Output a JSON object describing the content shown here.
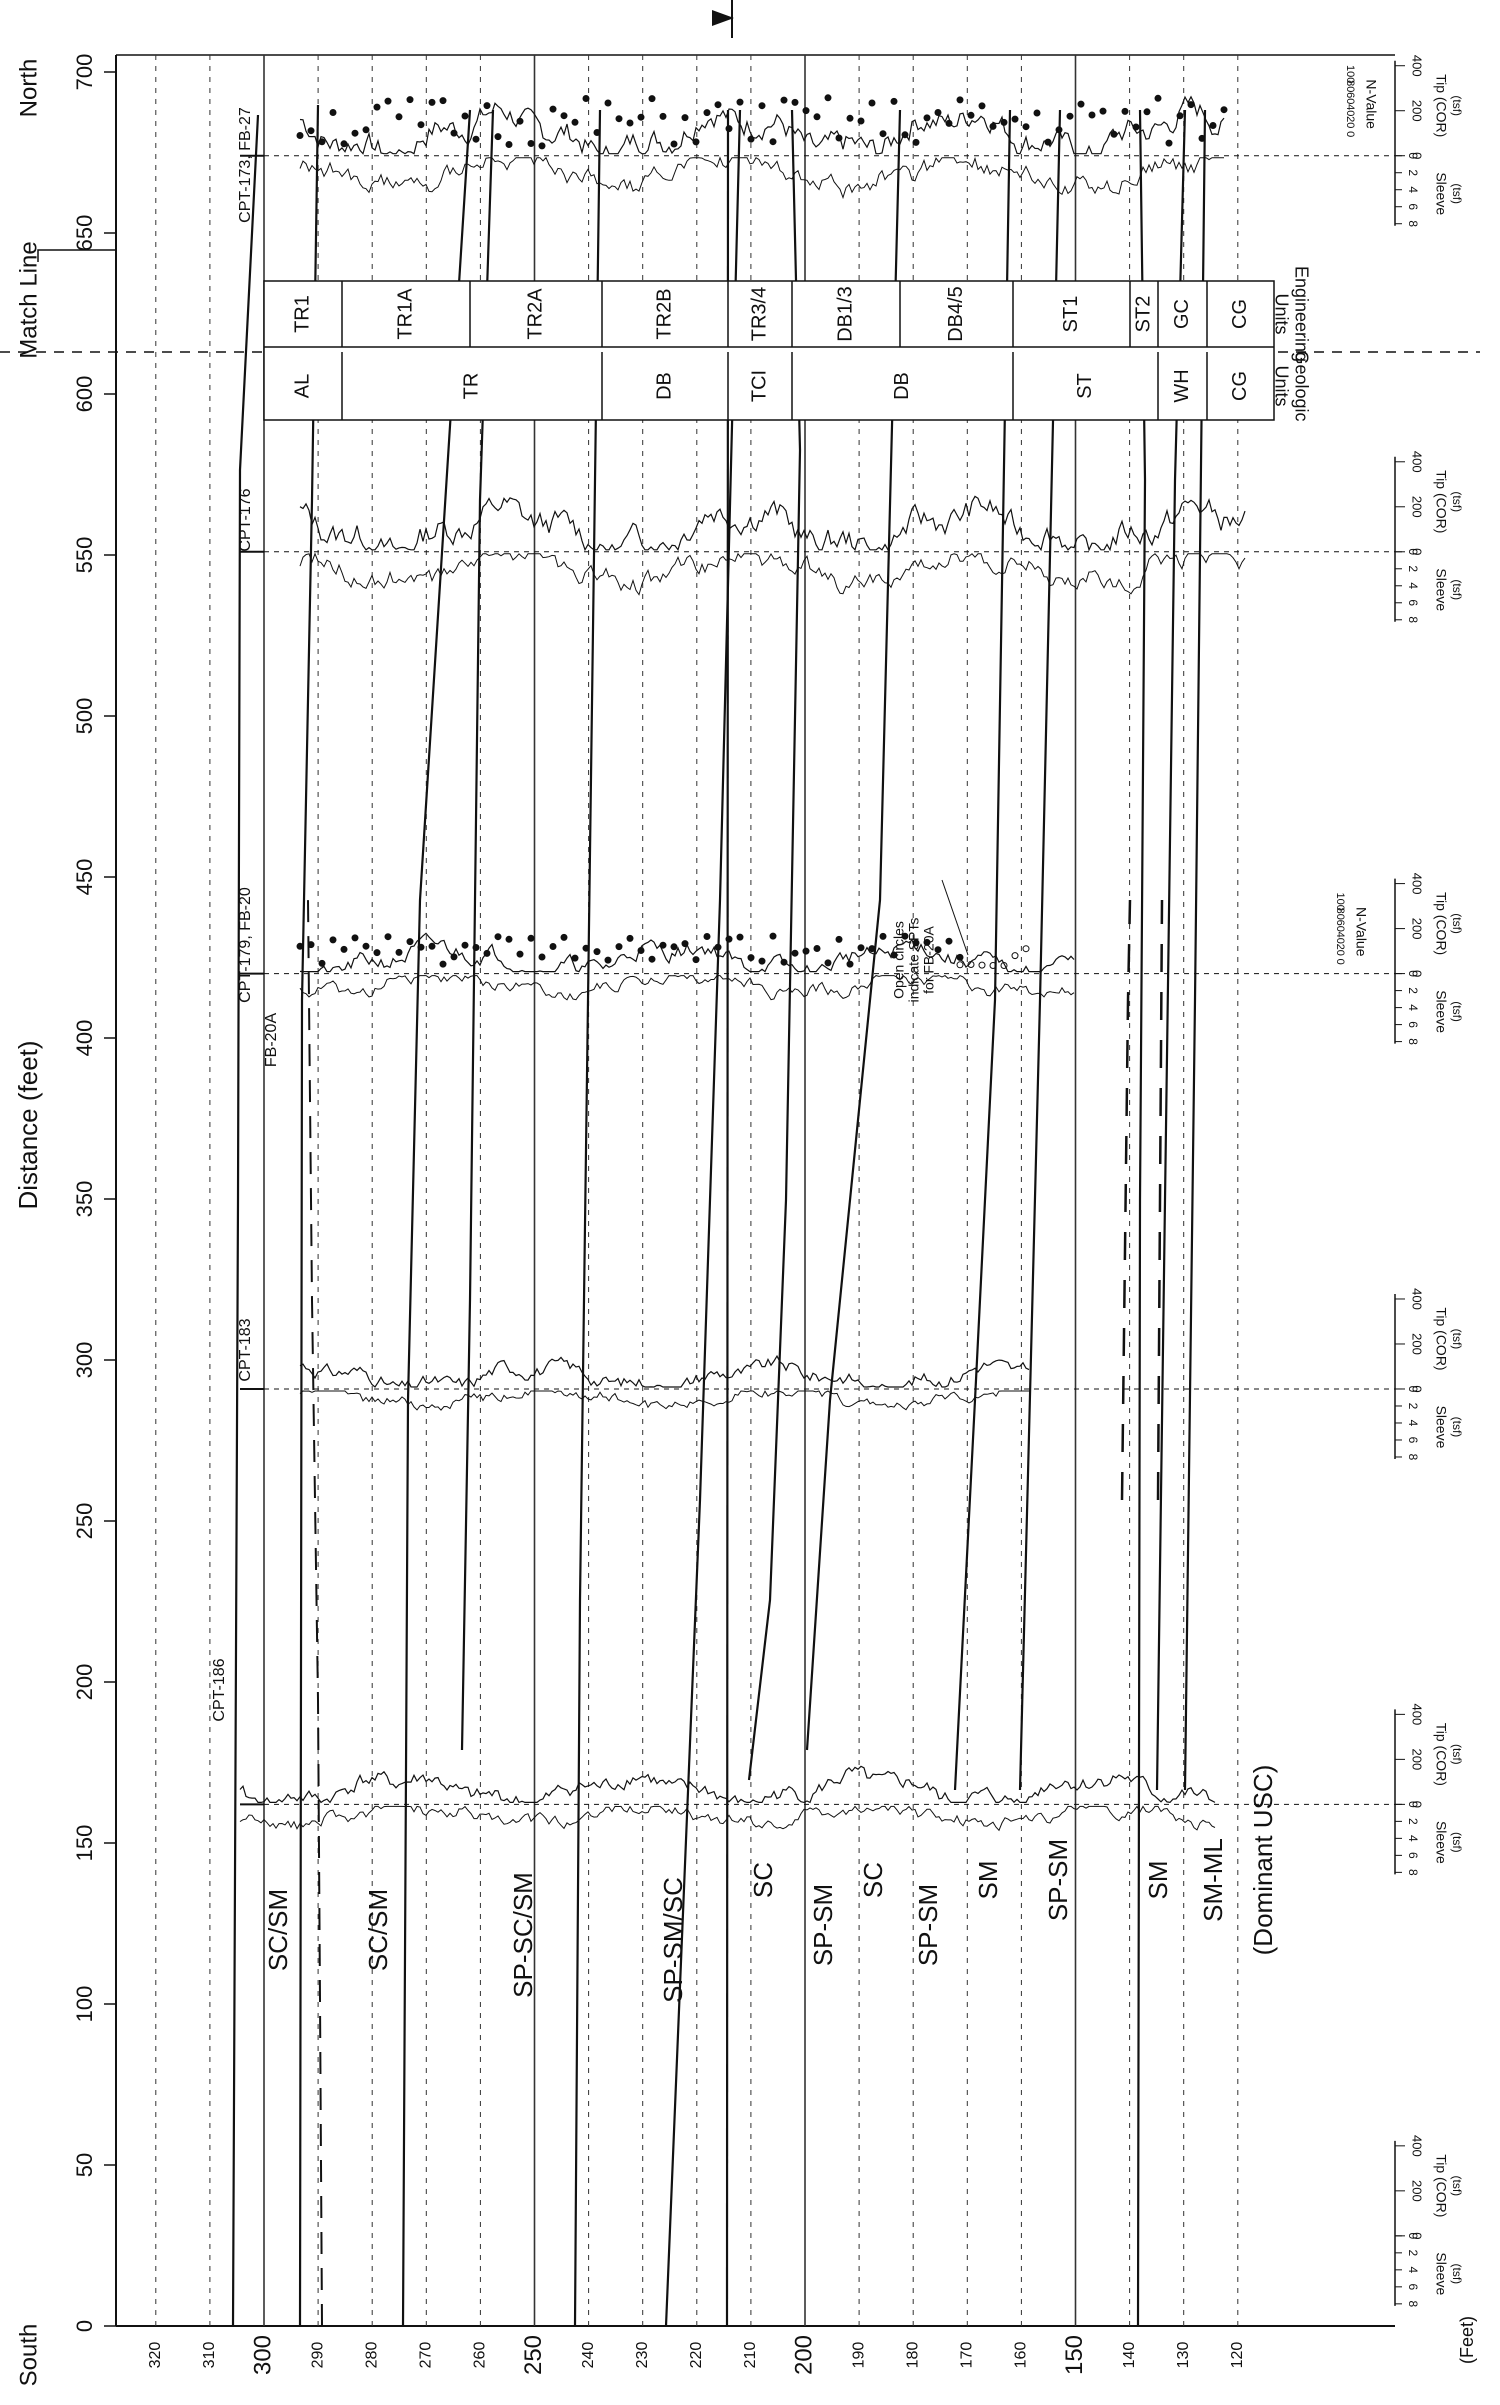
{
  "header": {
    "north": "North",
    "south": "South",
    "match_line": "Match Line",
    "distance_axis_label": "Distance (feet)",
    "elevation_axis_label": "(Feet)"
  },
  "axes": {
    "distance_ticks": [
      "0",
      "50",
      "100",
      "150",
      "200",
      "250",
      "300",
      "350",
      "400",
      "450",
      "500",
      "550",
      "600",
      "650",
      "700"
    ],
    "elevation_ticks": [
      "320",
      "310",
      "300",
      "290",
      "280",
      "270",
      "260",
      "250",
      "240",
      "230",
      "220",
      "210",
      "200",
      "190",
      "180",
      "170",
      "160",
      "150",
      "140",
      "130",
      "120"
    ]
  },
  "units_table": {
    "engineering_header": "Engineering\nUnits",
    "geologic_header": "Geologic\nUnits",
    "engineering": [
      "TR1",
      "TR1A",
      "TR2A",
      "TR2B",
      "TR3/4",
      "DB1/3",
      "DB4/5",
      "ST1",
      "ST2",
      "GC",
      "CG"
    ],
    "geologic": [
      "AL",
      "TR",
      "DB",
      "TCI",
      "DB",
      "ST",
      "WH",
      "CG"
    ]
  },
  "cpt_labels": [
    "CPT-173, FB-27",
    "CPT-176",
    "CPT-179, FB-20",
    "FB-20A",
    "CPT-183",
    "CPT-186"
  ],
  "usc_labels": [
    "SC/SM",
    "SC/SM",
    "SP-SC/SM",
    "SP-SM/SC",
    "SC",
    "SP-SM",
    "SC",
    "SP-SM",
    "SM",
    "SP-SM",
    "SM",
    "SM-ML",
    "(Dominant USC)"
  ],
  "annotation": "Open circles\nindicate SPTs\nfor FB-20A",
  "scale_labels": {
    "tip": "Tip (COR)",
    "tsf": "(tsf)",
    "sleeve": "Sleeve",
    "nvalue": "N-Value",
    "tip_ticks": [
      "0",
      "200",
      "400"
    ],
    "sleeve_ticks": [
      "0",
      "2",
      "4",
      "6",
      "8"
    ],
    "n_ticks": [
      "0",
      "20",
      "40",
      "60",
      "80",
      "100"
    ]
  }
}
